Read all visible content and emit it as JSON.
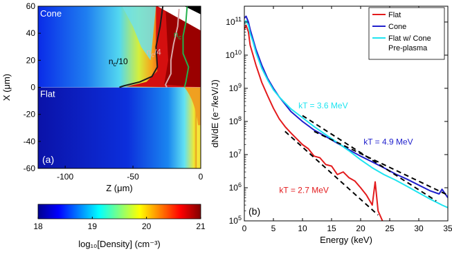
{
  "chart_data": [
    {
      "type": "heatmap",
      "panel_label": "(a)",
      "region_labels": {
        "top": "Cone",
        "bottom": "Flat"
      },
      "xlabel": "Z (μm)",
      "ylabel": "X (μm)",
      "xlim": [
        -120,
        0
      ],
      "ylim": [
        -60,
        60
      ],
      "xticks": [
        -100,
        -50,
        0
      ],
      "xtick_labels": [
        "-100",
        "-50",
        "0"
      ],
      "yticks": [
        -60,
        -40,
        -20,
        0,
        20,
        40,
        60
      ],
      "ytick_labels": [
        "-60",
        "-40",
        "-20",
        "0",
        "20",
        "40",
        "60"
      ],
      "colorbar": {
        "label": "log₁₀[Density] (cm⁻³)",
        "range": [
          18,
          21
        ],
        "ticks": [
          18,
          19,
          20,
          21
        ],
        "tick_labels": [
          "18",
          "19",
          "20",
          "21"
        ],
        "colormap": "jet"
      },
      "contours": [
        {
          "label": "n_c/10",
          "color": "#1a1a1a",
          "points": [
            [
              -28,
              60
            ],
            [
              -30,
              45
            ],
            [
              -33,
              30
            ],
            [
              -32,
              15
            ],
            [
              -36,
              8
            ],
            [
              -45,
              4
            ],
            [
              -57,
              1
            ],
            [
              -60,
              0
            ]
          ]
        },
        {
          "label": "n_c/4",
          "color": "#d9a8a8",
          "points": [
            [
              -16,
              58
            ],
            [
              -17,
              45
            ],
            [
              -20,
              32
            ],
            [
              -22,
              20
            ],
            [
              -22,
              10
            ],
            [
              -26,
              2
            ],
            [
              -25,
              0
            ]
          ]
        },
        {
          "label": "n_c",
          "color": "#22b14c",
          "points": [
            [
              -10,
              60
            ],
            [
              -11,
              48
            ],
            [
              -13,
              38
            ],
            [
              -13,
              25
            ],
            [
              -9,
              15
            ],
            [
              -11,
              4
            ],
            [
              -12,
              0
            ]
          ]
        }
      ],
      "contour_labels": {
        "nc10": {
          "base": "n",
          "sub": "c",
          "tail": "/10"
        },
        "nc4": {
          "base": "n",
          "sub": "c",
          "tail": "/4"
        },
        "nc": {
          "base": "n",
          "sub": "c",
          "tail": ""
        }
      }
    },
    {
      "type": "line",
      "panel_label": "(b)",
      "xlabel": "Energy (keV)",
      "ylabel": "dN/dE (e⁻/keV/J)",
      "xlim": [
        0,
        35
      ],
      "ylim": [
        100000,
        300000000000
      ],
      "yscale": "log",
      "xticks": [
        0,
        5,
        10,
        15,
        20,
        25,
        30,
        35
      ],
      "xtick_labels": [
        "0",
        "5",
        "10",
        "15",
        "20",
        "25",
        "30",
        "35"
      ],
      "yticks": [
        100000,
        1000000,
        10000000,
        100000000,
        1000000000,
        10000000000,
        100000000000
      ],
      "ytick_labels": [
        {
          "base": "10",
          "exp": "5"
        },
        {
          "base": "10",
          "exp": "6"
        },
        {
          "base": "10",
          "exp": "7"
        },
        {
          "base": "10",
          "exp": "8"
        },
        {
          "base": "10",
          "exp": "9"
        },
        {
          "base": "10",
          "exp": "10"
        },
        {
          "base": "10",
          "exp": "11"
        }
      ],
      "legend_position": "top-right",
      "series": [
        {
          "name": "Flat",
          "color": "#e31a1c",
          "x": [
            0,
            0.3,
            0.7,
            1,
            1.5,
            2,
            3,
            4,
            5,
            6,
            7,
            8,
            9,
            10,
            11,
            12,
            13,
            14,
            15,
            16,
            17,
            18,
            19,
            20,
            21,
            22,
            22.5,
            23,
            24,
            25,
            26
          ],
          "y": [
            60000000000,
            80000000000,
            50000000000,
            20000000000,
            10000000000,
            5000000000,
            1500000000,
            600000000,
            250000000,
            120000000,
            70000000,
            45000000,
            30000000,
            20000000,
            15000000,
            9000000,
            8000000,
            5000000,
            4500000,
            2500000,
            3000000,
            2000000,
            1600000,
            1000000,
            600000,
            300000,
            1500000,
            200000,
            80000,
            100000,
            80000
          ]
        },
        {
          "name": "Cone",
          "color": "#1f1fcc",
          "x": [
            0,
            0.3,
            0.7,
            1,
            1.5,
            2,
            3,
            4,
            5,
            6,
            8,
            10,
            12,
            14,
            16,
            18,
            20,
            22,
            24,
            26,
            28,
            30,
            32,
            33.5,
            34,
            35
          ],
          "y": [
            130000000000,
            150000000000,
            100000000000,
            60000000000,
            30000000000,
            15000000000,
            5000000000,
            2000000000,
            1000000000,
            550000000,
            200000000,
            100000000,
            55000000,
            35000000,
            22000000,
            14000000,
            9000000,
            6000000,
            4000000,
            2600000,
            1800000,
            1200000,
            800000,
            650000,
            900000,
            500000
          ]
        },
        {
          "name": "Flat w/ Cone Pre-plasma",
          "legend_lines": [
            "Flat w/ Cone",
            "Pre-plasma"
          ],
          "color": "#1de4f0",
          "x": [
            0,
            0.3,
            0.7,
            1,
            1.5,
            2,
            3,
            4,
            5,
            6,
            8,
            10,
            12,
            14,
            16,
            18,
            20,
            22,
            24,
            26,
            28,
            30,
            32,
            34,
            35
          ],
          "y": [
            90000000000,
            110000000000,
            80000000000,
            45000000000,
            25000000000,
            12000000000,
            4000000000,
            1800000000,
            900000000,
            550000000,
            240000000,
            130000000,
            70000000,
            40000000,
            23000000,
            13000000,
            7000000,
            4000000,
            2500000,
            1700000,
            1100000,
            700000,
            450000,
            300000,
            250000
          ]
        }
      ],
      "fits": [
        {
          "label": "kT = 3.6 MeV",
          "color": "#1de4f0",
          "x": [
            10,
            33
          ],
          "y": [
            150000000,
            400000
          ]
        },
        {
          "label": "kT = 4.9 MeV",
          "color": "#1f1fcc",
          "x": [
            12,
            35
          ],
          "y": [
            50000000,
            600000
          ]
        },
        {
          "label": "kT = 2.7 MeV",
          "color": "#e31a1c",
          "x": [
            7,
            23
          ],
          "y": [
            50000000,
            150000
          ]
        }
      ]
    }
  ]
}
